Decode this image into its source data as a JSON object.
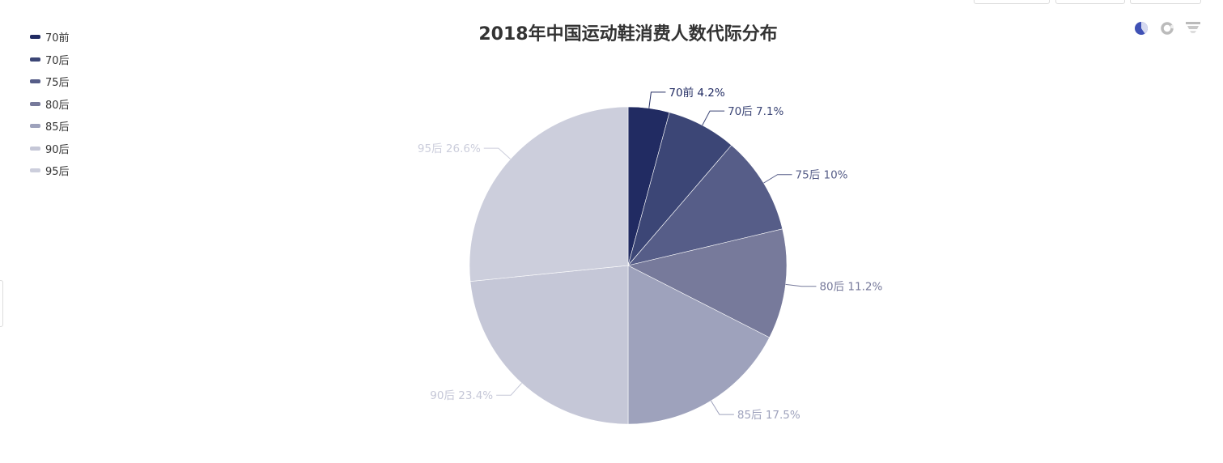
{
  "title": "2018年中国运动鞋消费人数代际分布",
  "legend": {
    "items": [
      {
        "label": "70前",
        "color": "#212b62"
      },
      {
        "label": "70后",
        "color": "#3c4676"
      },
      {
        "label": "75后",
        "color": "#565d88"
      },
      {
        "label": "80后",
        "color": "#777a9b"
      },
      {
        "label": "85后",
        "color": "#9ea2bc"
      },
      {
        "label": "90后",
        "color": "#c5c7d7"
      },
      {
        "label": "95后",
        "color": "#cccedc"
      }
    ]
  },
  "toolbox": {
    "pie_icon": "pie-chart-icon",
    "donut_icon": "donut-chart-icon",
    "funnel_icon": "funnel-chart-icon",
    "active_color": "#3f51b5",
    "inactive_color": "#bbbbbb"
  },
  "labels": {
    "s0": "70前 4.2%",
    "s1": "70后 7.1%",
    "s2": "75后 10%",
    "s3": "80后 11.2%",
    "s4": "85后 17.5%",
    "s5": "90后 23.4%",
    "s6": "95后 26.6%"
  },
  "chart_data": {
    "type": "pie",
    "title": "2018年中国运动鞋消费人数代际分布",
    "categories": [
      "70前",
      "70后",
      "75后",
      "80后",
      "85后",
      "90后",
      "95后"
    ],
    "values": [
      4.2,
      7.1,
      10,
      11.2,
      17.5,
      23.4,
      26.6
    ],
    "unit": "%",
    "colors": [
      "#212b62",
      "#3c4676",
      "#565d88",
      "#777a9b",
      "#9ea2bc",
      "#c5c7d7",
      "#cccedc"
    ],
    "label_format": "{name} {percent}%",
    "legend_position": "top-left, vertical",
    "start_angle": 90,
    "clockwise": true
  }
}
